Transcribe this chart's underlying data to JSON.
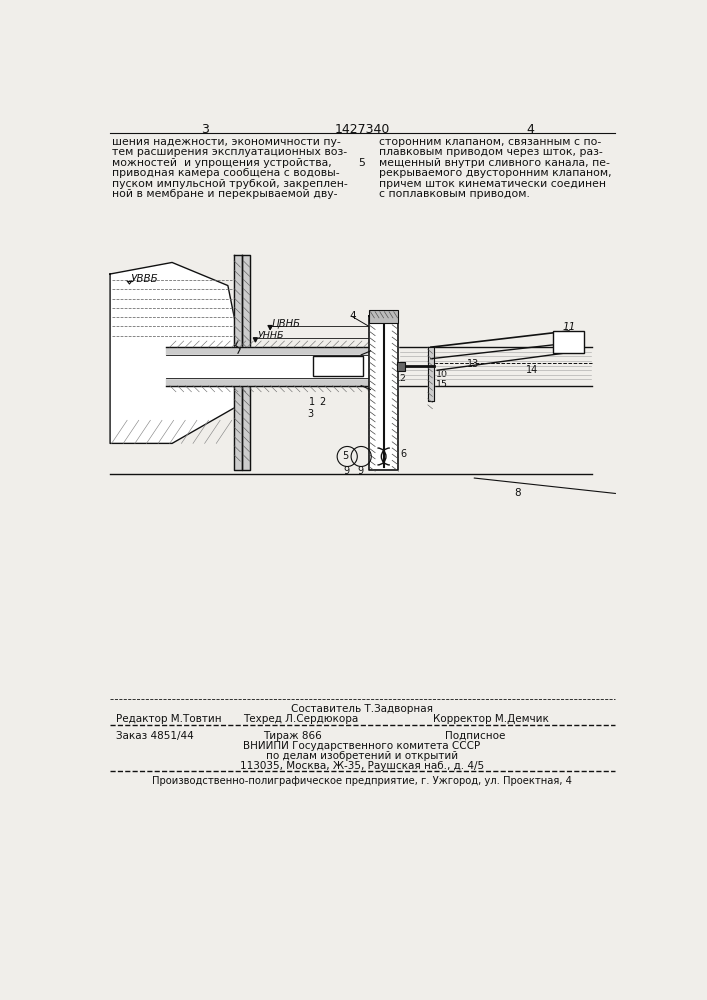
{
  "bg": "#f0eeea",
  "fg": "#111111",
  "page_num_left": "3",
  "page_num_center": "1427340",
  "page_num_right": "4",
  "col_num": "5",
  "left_col": [
    "шения надежности, экономичности пу-",
    "тем расширения эксплуатационных воз-",
    "можностей  и упрощения устройства,",
    "приводная камера сообщена с водовы-",
    "пуском импульсной трубкой, закреплен-",
    "ной в мембране и перекрываемой дву-"
  ],
  "right_col": [
    "сторонним клапаном, связанным с по-",
    "плавковым приводом через шток, раз-",
    "мещенный внутри сливного канала, пе-",
    "рекрываемого двусторонним клапаном,",
    "причем шток кинематически соединен",
    "с поплавковым приводом."
  ],
  "footer_sostavitel": "Составитель Т.Задворная",
  "footer_redaktor": "Редактор М.Товтин",
  "footer_tehred": "Техред Л.Сердюкора",
  "footer_korrektor": "Корректор М.Демчик",
  "footer_zakaz": "Заказ 4851/44",
  "footer_tirazh": "Тираж 866",
  "footer_podp": "Подписное",
  "footer_vniip1": "ВНИИПИ Государственного комитета СССР",
  "footer_vniip2": "по делам изобретений и открытий",
  "footer_vniip3": "113035, Москва, Ж-35, Раушская наб., д. 4/5",
  "footer_bottom": "Производственно-полиграфическое предприятие, г. Ужгород, ул. Проектная, 4"
}
